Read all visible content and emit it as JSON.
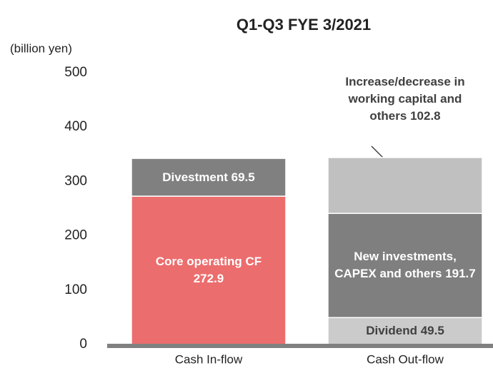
{
  "chart_data": {
    "type": "stacked_bar",
    "title": "Q1-Q3 FYE 3/2021",
    "y_label": "(billion yen)",
    "categories": [
      "Cash In-flow",
      "Cash Out-flow"
    ],
    "series": [
      {
        "name": "Core operating CF",
        "color": "#ec6d6d",
        "values": [
          272.9,
          null
        ]
      },
      {
        "name": "Divestment",
        "color": "#808080",
        "values": [
          69.5,
          null
        ]
      },
      {
        "name": "Dividend",
        "color": "#cbcbcb",
        "values": [
          null,
          49.5
        ]
      },
      {
        "name": "New investments, CAPEX and others",
        "color": "#7f7f7f",
        "values": [
          null,
          191.7
        ]
      },
      {
        "name": "Increase/decrease in working capital and others",
        "color": "#c0c0c0",
        "values": [
          null,
          102.8
        ]
      }
    ],
    "ylim": [
      0,
      500
    ],
    "yticks": [
      0,
      100,
      200,
      300,
      400,
      500
    ]
  }
}
